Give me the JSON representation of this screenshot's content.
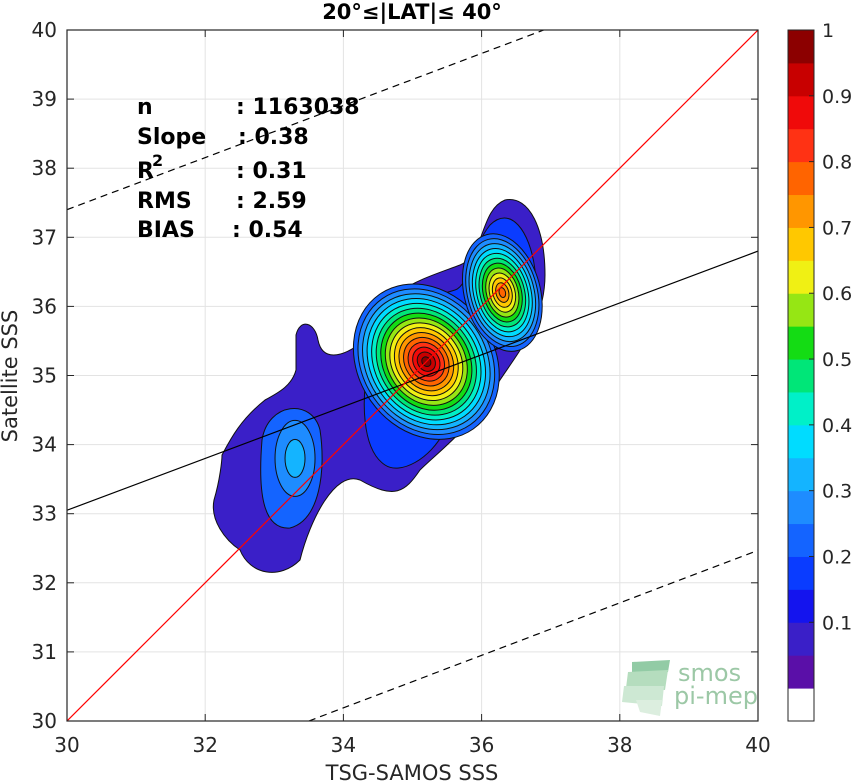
{
  "chart_data": {
    "type": "heatmap",
    "title": "20°≤|LAT|≤ 40°",
    "xlabel": "TSG-SAMOS SSS",
    "ylabel": "Satellite SSS",
    "xlim": [
      30,
      40
    ],
    "ylim": [
      30,
      40
    ],
    "xticks": [
      30,
      32,
      34,
      36,
      38,
      40
    ],
    "yticks": [
      30,
      31,
      32,
      33,
      34,
      35,
      36,
      37,
      38,
      39,
      40
    ],
    "grid": true,
    "stats": [
      {
        "label": "n",
        "value": ": 1163038"
      },
      {
        "label": "Slope",
        "value": ": 0.38"
      },
      {
        "label": "R",
        "sup": "2",
        "value": ": 0.31"
      },
      {
        "label": "RMS",
        "value": ": 2.59"
      },
      {
        "label": "BIAS",
        "value": ": 0.54"
      }
    ],
    "lines": {
      "one_to_one": {
        "color": "#ff0000",
        "points": [
          [
            30,
            30
          ],
          [
            40,
            40
          ]
        ]
      },
      "regression": {
        "color": "#000000",
        "slope": 0.38,
        "points": [
          [
            30,
            33.05
          ],
          [
            40,
            36.8
          ]
        ]
      },
      "upper_bound": {
        "color": "#000000",
        "style": "dashed",
        "points": [
          [
            30,
            37.4
          ],
          [
            36.9,
            40
          ]
        ]
      },
      "lower_bound": {
        "color": "#000000",
        "style": "dashed",
        "points": [
          [
            33.5,
            30
          ],
          [
            40,
            32.47
          ]
        ]
      }
    },
    "density_peaks": [
      {
        "x": 35.2,
        "y": 35.2,
        "value": 1.0
      },
      {
        "x": 36.3,
        "y": 36.2,
        "value": 0.8
      },
      {
        "x": 33.3,
        "y": 33.8,
        "value": 0.35
      }
    ],
    "colorbar": {
      "ticks": [
        "0.1",
        "0.2",
        "0.3",
        "0.4",
        "0.5",
        "0.6",
        "0.7",
        "0.8",
        "0.9",
        "1"
      ],
      "levels": [
        0,
        0.05,
        0.1,
        0.15,
        0.2,
        0.25,
        0.3,
        0.35,
        0.4,
        0.45,
        0.5,
        0.55,
        0.6,
        0.65,
        0.7,
        0.75,
        0.8,
        0.85,
        0.9,
        0.95,
        1.0
      ],
      "colors": [
        "#ffffff",
        "#5a0fa8",
        "#3a1fc8",
        "#1414ee",
        "#0a3cff",
        "#1464ff",
        "#1e8cff",
        "#14b4ff",
        "#00dcff",
        "#00f0c8",
        "#00e678",
        "#14dc14",
        "#96e614",
        "#f0f014",
        "#ffc800",
        "#ff9600",
        "#ff6400",
        "#ff3214",
        "#f00a0a",
        "#c80000",
        "#8c0000"
      ]
    },
    "logo": {
      "line1": "smos",
      "line2": "pi-mep"
    }
  }
}
